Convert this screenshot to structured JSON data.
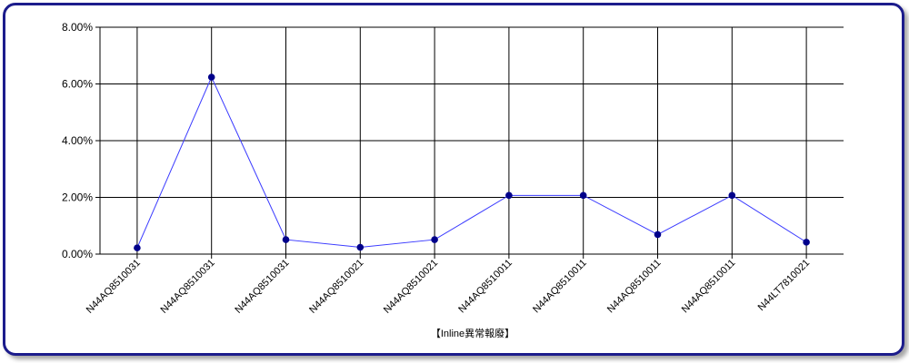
{
  "chart_data": {
    "type": "line",
    "title": "",
    "xlabel": "【Inline異常報廢】",
    "ylabel": "",
    "categories": [
      "N44AQ8510031",
      "N44AQ8510031",
      "N44AQ8510031",
      "N44AQ8510021",
      "N44AQ8510021",
      "N44AQ8510011",
      "N44AQ8510011",
      "N44AQ8510011",
      "N44AQ8510011",
      "N44LT7810021"
    ],
    "series": [
      {
        "values": [
          0.22,
          6.24,
          0.51,
          0.24,
          0.51,
          2.07,
          2.07,
          0.69,
          2.07,
          0.42
        ]
      }
    ],
    "ylim": [
      0,
      8
    ],
    "yticks": [
      0,
      2,
      4,
      6,
      8
    ],
    "ytick_labels": [
      "0.00%",
      "2.00%",
      "4.00%",
      "6.00%",
      "8.00%"
    ],
    "grid": true,
    "colors": {
      "line": "#3b3bff",
      "marker": "#00008b",
      "frame": "#1c1c8c"
    }
  }
}
